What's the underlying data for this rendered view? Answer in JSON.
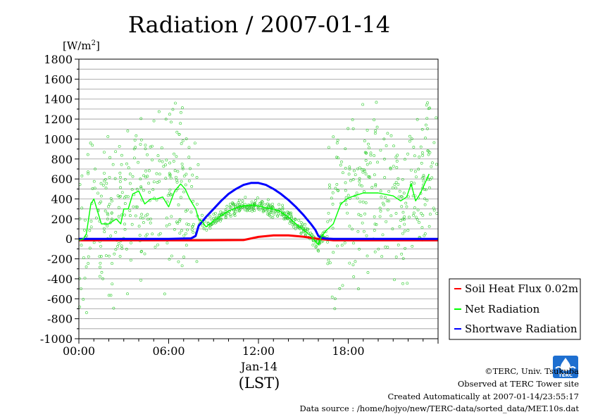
{
  "chart_data": {
    "type": "line",
    "title": "Radiation / 2007-01-14",
    "ylabel_unit": "W/m",
    "ylabel_superscript": "2",
    "ylim": [
      -1000,
      1800
    ],
    "yticks": [
      -1000,
      -800,
      -600,
      -400,
      -200,
      0,
      200,
      400,
      600,
      800,
      1000,
      1200,
      1400,
      1600,
      1800
    ],
    "ytick_labels": [
      "-1000",
      "-800",
      "-600",
      "-400",
      "-200",
      "0",
      "200",
      "400",
      "600",
      "800",
      "1000",
      "1200",
      "1400",
      "1600",
      "1800"
    ],
    "xlim": [
      0,
      24
    ],
    "xticks": [
      0,
      6,
      12,
      18
    ],
    "xtick_labels": [
      "00:00",
      "06:00",
      "12:00",
      "18:00"
    ],
    "x_date_label": "Jan-14",
    "xlabel": "(LST)",
    "grid": true,
    "legend_position": "right",
    "series": [
      {
        "name": "Soil Heat Flux 0.02m",
        "color": "#ff0000",
        "x": [
          0,
          4,
          8,
          11,
          12,
          13,
          14,
          15,
          16,
          17,
          24
        ],
        "values": [
          -15,
          -15,
          -15,
          -12,
          20,
          35,
          35,
          22,
          0,
          -15,
          -15
        ]
      },
      {
        "name": "Net Radiation",
        "color": "#00ff00",
        "x": [
          0.0,
          0.3,
          0.5,
          0.8,
          1.0,
          1.2,
          1.5,
          2.0,
          2.5,
          2.8,
          3.0,
          3.3,
          3.6,
          4.0,
          4.4,
          4.8,
          5.2,
          5.6,
          6.0,
          6.4,
          6.8,
          7.1,
          7.4,
          7.8,
          8.0,
          8.2,
          8.5,
          9.0,
          9.5,
          10.0,
          10.5,
          11.0,
          11.5,
          12.0,
          12.3,
          12.5,
          13.0,
          13.5,
          14.0,
          14.5,
          15.0,
          15.5,
          16.0,
          16.2,
          16.5,
          17.0,
          17.5,
          18.0,
          19.0,
          20.0,
          21.0,
          21.5,
          21.9,
          22.2,
          22.5,
          22.8,
          23.1,
          23.4
        ],
        "values": [
          -15,
          0,
          50,
          350,
          400,
          300,
          150,
          150,
          200,
          150,
          300,
          300,
          450,
          480,
          350,
          400,
          400,
          420,
          320,
          480,
          550,
          500,
          400,
          300,
          200,
          180,
          120,
          180,
          230,
          280,
          310,
          330,
          340,
          330,
          320,
          310,
          300,
          270,
          220,
          150,
          90,
          30,
          -60,
          20,
          80,
          150,
          350,
          410,
          460,
          460,
          430,
          380,
          420,
          550,
          380,
          450,
          550,
          650
        ]
      },
      {
        "name": "Shortwave Radiation",
        "color": "#0000ff",
        "x": [
          0,
          6,
          7.5,
          7.8,
          8.0,
          8.5,
          9.0,
          9.5,
          10.0,
          10.5,
          11.0,
          11.5,
          12.0,
          12.5,
          13.0,
          13.5,
          14.0,
          14.5,
          15.0,
          15.5,
          15.8,
          16.0,
          16.2,
          16.5,
          17,
          24
        ],
        "values": [
          0,
          0,
          5,
          30,
          130,
          220,
          300,
          380,
          450,
          500,
          540,
          560,
          560,
          540,
          500,
          450,
          390,
          320,
          240,
          150,
          90,
          30,
          10,
          3,
          0,
          0
        ]
      }
    ]
  },
  "credits": {
    "copyright": "©TERC, Univ. Tsukuba",
    "observed": "Observed at TERC Tower site",
    "created": "Created Automatically at 2007-01-14/23:55:17",
    "source": "Data source : /home/hojyo/new/TERC-data/sorted_data/MET.10s.dat"
  },
  "logo": {
    "text": "TERC",
    "color": "#1e6fd0"
  }
}
